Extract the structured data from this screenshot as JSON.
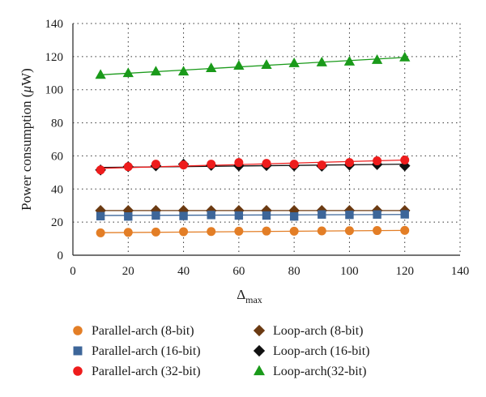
{
  "chart_data": {
    "type": "scatter",
    "title": "",
    "ylabel_prefix": "Power consumption (",
    "ylabel_mu": "μ",
    "ylabel_suffix": "W)",
    "xlabel_main": "Δ",
    "xlabel_sub": "max",
    "xlim": [
      0,
      140
    ],
    "ylim": [
      0,
      140
    ],
    "xticks": [
      0,
      20,
      40,
      60,
      80,
      100,
      120,
      140
    ],
    "yticks": [
      0,
      20,
      40,
      60,
      80,
      100,
      120,
      140
    ],
    "grid": "dotted",
    "legend_position": "bottom",
    "x": [
      10,
      20,
      30,
      40,
      50,
      60,
      70,
      80,
      90,
      100,
      110,
      120
    ],
    "series": [
      {
        "name": "Parallel-arch (8-bit)",
        "marker": "circle",
        "color": "#E37E26",
        "values": [
          13.5,
          13.8,
          14.0,
          14.2,
          14.3,
          14.5,
          14.6,
          14.5,
          14.7,
          14.8,
          14.9,
          15.0
        ],
        "trend": [
          13.6,
          15.0
        ]
      },
      {
        "name": "Loop-arch (8-bit)",
        "marker": "diamond",
        "color": "#6B3A12",
        "values": [
          27.0,
          27.0,
          27.0,
          27.0,
          26.9,
          27.0,
          27.0,
          27.0,
          27.0,
          27.0,
          27.0,
          27.0
        ],
        "trend": [
          27.0,
          27.0
        ]
      },
      {
        "name": "Parallel-arch (16-bit)",
        "marker": "square",
        "color": "#3D6699",
        "values": [
          23.6,
          23.4,
          24.0,
          23.7,
          24.3,
          24.0,
          24.0,
          23.4,
          24.6,
          24.4,
          24.6,
          24.7
        ],
        "trend": [
          24.0,
          24.6
        ]
      },
      {
        "name": "Loop-arch (16-bit)",
        "marker": "diamond",
        "color": "#111111",
        "values": [
          51.5,
          53.5,
          54.0,
          55.0,
          54.3,
          54.0,
          54.2,
          54.0,
          53.8,
          54.5,
          54.8,
          54.0
        ],
        "trend": [
          53.0,
          55.0
        ]
      },
      {
        "name": "Parallel-arch (32-bit)",
        "marker": "circle",
        "color": "#EE1C1C",
        "values": [
          51.5,
          53.5,
          55.0,
          54.5,
          55.0,
          56.0,
          55.5,
          55.0,
          54.5,
          56.0,
          57.0,
          57.5
        ],
        "trend": [
          52.5,
          57.5
        ]
      },
      {
        "name": "Loop-arch(32-bit)",
        "marker": "triangle",
        "color": "#1A9A1A",
        "values": [
          109.0,
          110.0,
          111.0,
          111.0,
          113.0,
          114.5,
          115.0,
          116.0,
          116.5,
          117.0,
          118.0,
          119.5
        ],
        "trend": [
          109.0,
          119.5
        ]
      }
    ]
  }
}
